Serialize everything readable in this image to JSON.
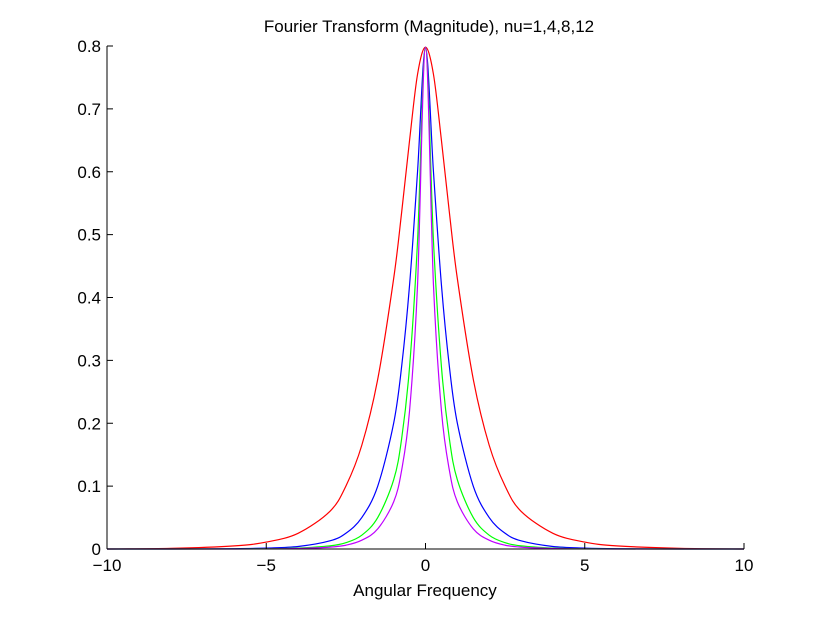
{
  "chart_data": {
    "type": "line",
    "title": "Fourier Transform (Magnitude), nu=1,4,8,12",
    "xlabel": "Angular Frequency",
    "ylabel": "",
    "xlim": [
      -10,
      10
    ],
    "ylim": [
      0,
      0.8
    ],
    "x_ticks": [
      "−10",
      "−5",
      "0",
      "5",
      "10"
    ],
    "x_tick_values": [
      -10,
      -5,
      0,
      5,
      10
    ],
    "y_ticks": [
      "0",
      "0.1",
      "0.2",
      "0.3",
      "0.4",
      "0.5",
      "0.6",
      "0.7",
      "0.8"
    ],
    "y_tick_values": [
      0,
      0.1,
      0.2,
      0.3,
      0.4,
      0.5,
      0.6,
      0.7,
      0.8
    ],
    "grid": false,
    "legend": "none",
    "x": [
      -10,
      -8,
      -6,
      -5,
      -4,
      -3,
      -2.5,
      -2,
      -1.5,
      -1,
      -0.75,
      -0.5,
      -0.25,
      0,
      0.25,
      0.5,
      0.75,
      1,
      1.5,
      2,
      2.5,
      3,
      4,
      5,
      6,
      8,
      10
    ],
    "series": [
      {
        "color": "#ff0000",
        "values": [
          0.0,
          0.001,
          0.005,
          0.011,
          0.025,
          0.06,
          0.1,
          0.165,
          0.27,
          0.43,
          0.535,
          0.65,
          0.755,
          0.798,
          0.755,
          0.65,
          0.535,
          0.43,
          0.27,
          0.165,
          0.1,
          0.06,
          0.025,
          0.011,
          0.005,
          0.001,
          0.0
        ]
      },
      {
        "color": "#0000ff",
        "values": [
          0.0,
          0.0,
          0.0005,
          0.0015,
          0.004,
          0.013,
          0.025,
          0.05,
          0.1,
          0.2,
          0.29,
          0.42,
          0.6,
          0.798,
          0.6,
          0.42,
          0.29,
          0.2,
          0.1,
          0.05,
          0.025,
          0.013,
          0.004,
          0.0015,
          0.0005,
          0.0,
          0.0
        ]
      },
      {
        "color": "#00ff00",
        "values": [
          0.0,
          0.0,
          0.0001,
          0.0004,
          0.0015,
          0.005,
          0.01,
          0.022,
          0.05,
          0.11,
          0.175,
          0.29,
          0.49,
          0.798,
          0.49,
          0.29,
          0.175,
          0.11,
          0.05,
          0.022,
          0.01,
          0.005,
          0.0015,
          0.0004,
          0.0001,
          0.0,
          0.0
        ]
      },
      {
        "color": "#bf00ff",
        "values": [
          0.0,
          0.0,
          0.0,
          0.0002,
          0.0008,
          0.003,
          0.006,
          0.014,
          0.032,
          0.075,
          0.125,
          0.22,
          0.42,
          0.798,
          0.42,
          0.22,
          0.125,
          0.075,
          0.032,
          0.014,
          0.006,
          0.003,
          0.0008,
          0.0002,
          0.0,
          0.0,
          0.0
        ]
      }
    ]
  }
}
